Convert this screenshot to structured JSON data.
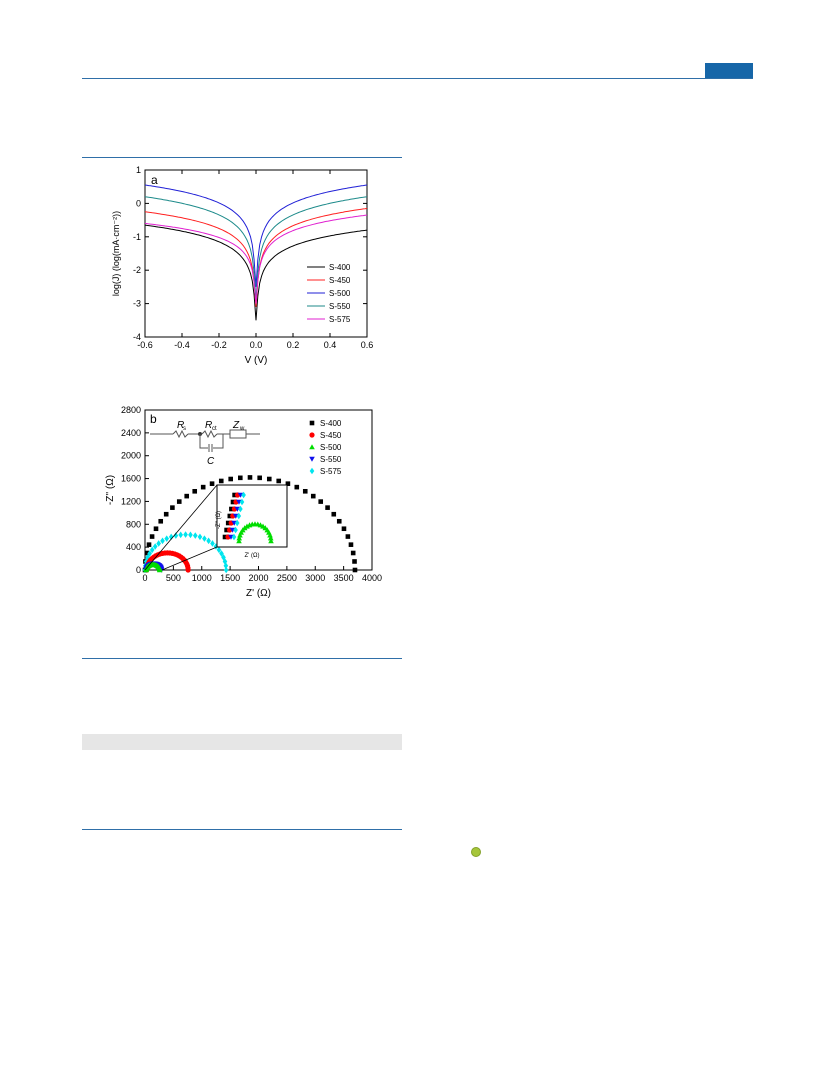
{
  "colors": {
    "header_rule": "#2f6fa8",
    "badge": "#1666a8",
    "gray_bar": "#e6e6e6",
    "bullet": "#a6c63a"
  },
  "chart_data": [
    {
      "type": "line",
      "panel_label": "a",
      "xlabel": "V (V)",
      "ylabel": "log(J) (log(mA·cm⁻²))",
      "xlim": [
        -0.6,
        0.6
      ],
      "ylim": [
        -4,
        1
      ],
      "xticks": [
        "-0.6",
        "-0.4",
        "-0.2",
        "0.0",
        "0.2",
        "0.4",
        "0.6"
      ],
      "yticks": [
        "-4",
        "-3",
        "-2",
        "-1",
        "0",
        "1"
      ],
      "legend_position": "bottom-right",
      "series": [
        {
          "name": "S-400",
          "color": "#000000",
          "min_y": -3.5,
          "left_end": -0.65,
          "right_end": -0.8
        },
        {
          "name": "S-450",
          "color": "#ff2020",
          "min_y": -3.1,
          "left_end": -0.25,
          "right_end": -0.15
        },
        {
          "name": "S-500",
          "color": "#1f1fd6",
          "min_y": -2.5,
          "left_end": 0.55,
          "right_end": 0.55
        },
        {
          "name": "S-550",
          "color": "#1c8a8a",
          "min_y": -2.9,
          "left_end": 0.2,
          "right_end": 0.2
        },
        {
          "name": "S-575",
          "color": "#e020d0",
          "min_y": -3.0,
          "left_end": -0.6,
          "right_end": -0.35
        }
      ]
    },
    {
      "type": "scatter",
      "panel_label": "b",
      "xlabel": "Z' (Ω)",
      "ylabel": "-Z'' (Ω)",
      "xlim": [
        0,
        4000
      ],
      "ylim": [
        0,
        2800
      ],
      "xticks": [
        "0",
        "500",
        "1000",
        "1500",
        "2000",
        "2500",
        "3000",
        "3500",
        "4000"
      ],
      "yticks": [
        "0",
        "400",
        "800",
        "1200",
        "1600",
        "2000",
        "2400",
        "2800"
      ],
      "legend_position": "top-right",
      "circuit_labels": {
        "rs": "R",
        "rs_sub": "s",
        "rct": "R",
        "rct_sub": "ct",
        "zw": "Z",
        "zw_sub": "w",
        "c": "C"
      },
      "inset": {
        "xlabel": "Z' (Ω)",
        "ylabel": "-Z'' (Ω)"
      },
      "series": [
        {
          "name": "S-400",
          "color": "#000000",
          "marker": "square",
          "x0": 0,
          "x1": 3700,
          "peak": 1620
        },
        {
          "name": "S-450",
          "color": "#ff0000",
          "marker": "circle",
          "x0": 30,
          "x1": 760,
          "peak": 300
        },
        {
          "name": "S-500",
          "color": "#00dd00",
          "marker": "triangle-up",
          "x0": 20,
          "x1": 260,
          "peak": 95
        },
        {
          "name": "S-550",
          "color": "#1010ee",
          "marker": "triangle-down",
          "x0": 20,
          "x1": 290,
          "peak": 110
        },
        {
          "name": "S-575",
          "color": "#00e5ee",
          "marker": "diamond",
          "x0": 0,
          "x1": 1430,
          "peak": 620
        }
      ]
    }
  ]
}
